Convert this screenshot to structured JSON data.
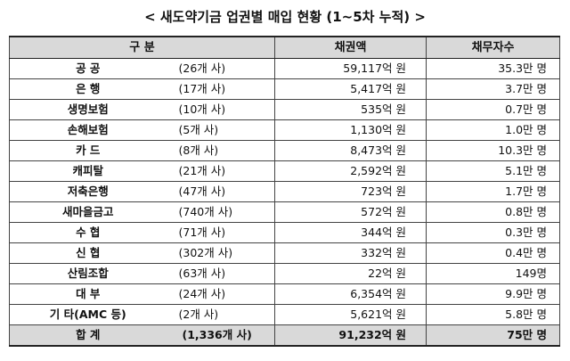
{
  "title": "< 새도약기금 업권별 매입 현황 (1~5차 누적) >",
  "headers": {
    "category": "구   분",
    "amount": "채권액",
    "debtors": "채무자수"
  },
  "rows": [
    {
      "name": "공   공",
      "count": "(26개 사)",
      "amount": "59,117억 원",
      "debtors": "35.3만 명"
    },
    {
      "name": "은   행",
      "count": "(17개 사)",
      "amount": "5,417억 원",
      "debtors": "3.7만 명"
    },
    {
      "name": "생명보험",
      "count": "(10개 사)",
      "amount": "535억 원",
      "debtors": "0.7만 명"
    },
    {
      "name": "손해보험",
      "count": "(5개 사)",
      "amount": "1,130억 원",
      "debtors": "1.0만 명"
    },
    {
      "name": "카   드",
      "count": "(8개 사)",
      "amount": "8,473억 원",
      "debtors": "10.3만 명"
    },
    {
      "name": "캐피탈",
      "count": "(21개 사)",
      "amount": "2,592억 원",
      "debtors": "5.1만 명"
    },
    {
      "name": "저축은행",
      "count": "(47개 사)",
      "amount": "723억 원",
      "debtors": "1.7만 명"
    },
    {
      "name": "새마을금고",
      "count": "(740개 사)",
      "amount": "572억 원",
      "debtors": "0.8만 명"
    },
    {
      "name": "수   협",
      "count": "(71개 사)",
      "amount": "344억 원",
      "debtors": "0.3만 명"
    },
    {
      "name": "신   협",
      "count": "(302개 사)",
      "amount": "332억 원",
      "debtors": "0.4만 명"
    },
    {
      "name": "산림조합",
      "count": "(63개 사)",
      "amount": "22억 원",
      "debtors": "149명"
    },
    {
      "name": "대   부",
      "count": "(24개 사)",
      "amount": "6,354억 원",
      "debtors": "9.9만 명"
    },
    {
      "name": "기 타(AMC 등)",
      "count": "(2개 사)",
      "amount": "5,621억 원",
      "debtors": "5.8만 명"
    }
  ],
  "total": {
    "name": "합   계",
    "count": "(1,336개 사)",
    "amount": "91,232억 원",
    "debtors": "75만 명"
  }
}
